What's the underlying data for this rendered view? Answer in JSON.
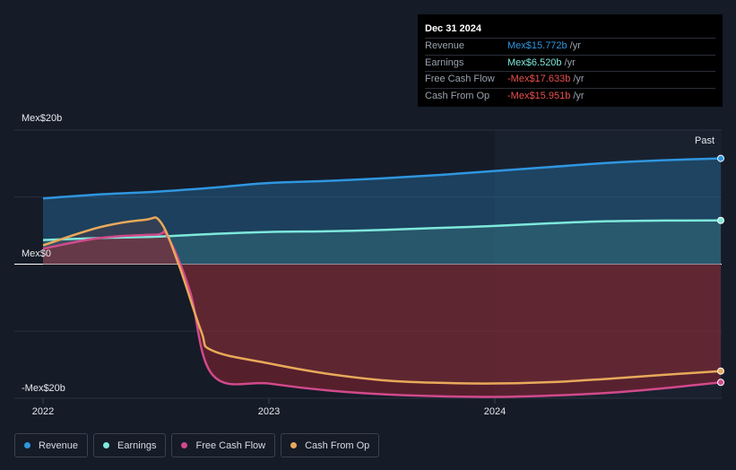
{
  "tooltip": {
    "date": "Dec 31 2024",
    "rows": [
      {
        "label": "Revenue",
        "value": "Mex$15.772b",
        "unit": "/yr",
        "color": "#2f96e0"
      },
      {
        "label": "Earnings",
        "value": "Mex$6.520b",
        "unit": "/yr",
        "color": "#7ee8dc"
      },
      {
        "label": "Free Cash Flow",
        "value": "-Mex$17.633b",
        "unit": "/yr",
        "color": "#e84f4f"
      },
      {
        "label": "Cash From Op",
        "value": "-Mex$15.951b",
        "unit": "/yr",
        "color": "#e84f4f"
      }
    ]
  },
  "legend": [
    {
      "label": "Revenue",
      "color": "#2f96e0"
    },
    {
      "label": "Earnings",
      "color": "#7ee8dc"
    },
    {
      "label": "Free Cash Flow",
      "color": "#d14a8b"
    },
    {
      "label": "Cash From Op",
      "color": "#e8a95a"
    }
  ],
  "chart_data": {
    "type": "area",
    "y_labels": {
      "top": "Mex$20b",
      "zero": "Mex$0",
      "bottom": "-Mex$20b"
    },
    "ylim": [
      -20,
      20
    ],
    "xlim": [
      2022.0,
      2025.0
    ],
    "x_ticks": [
      {
        "value": 2022.0,
        "label": "2022"
      },
      {
        "value": 2023.0,
        "label": "2023"
      },
      {
        "value": 2024.0,
        "label": "2024"
      }
    ],
    "past_label": "Past",
    "past_start": 2024.0,
    "series": [
      {
        "name": "Revenue",
        "color": "#2f96e0",
        "x": [
          2022.0,
          2022.25,
          2022.5,
          2022.75,
          2023.0,
          2023.25,
          2023.5,
          2023.75,
          2024.0,
          2024.25,
          2024.5,
          2024.75,
          2025.0
        ],
        "y": [
          9.8,
          10.4,
          10.8,
          11.4,
          12.1,
          12.4,
          12.8,
          13.3,
          13.9,
          14.5,
          15.1,
          15.5,
          15.772
        ]
      },
      {
        "name": "Earnings",
        "color": "#7ee8dc",
        "x": [
          2022.0,
          2022.25,
          2022.5,
          2022.75,
          2023.0,
          2023.25,
          2023.5,
          2023.75,
          2024.0,
          2024.25,
          2024.5,
          2024.75,
          2025.0
        ],
        "y": [
          3.6,
          3.9,
          4.1,
          4.5,
          4.8,
          4.9,
          5.1,
          5.4,
          5.7,
          6.1,
          6.4,
          6.5,
          6.52
        ]
      },
      {
        "name": "Free Cash Flow",
        "color": "#d14a8b",
        "x": [
          2022.0,
          2022.25,
          2022.5,
          2022.55,
          2022.65,
          2022.75,
          2023.0,
          2023.25,
          2023.5,
          2023.75,
          2024.0,
          2024.25,
          2024.5,
          2024.75,
          2025.0
        ],
        "y": [
          2.3,
          3.9,
          4.4,
          4.2,
          -4.0,
          -16.5,
          -17.8,
          -18.8,
          -19.4,
          -19.7,
          -19.8,
          -19.6,
          -19.2,
          -18.5,
          -17.633
        ]
      },
      {
        "name": "Cash From Op",
        "color": "#e8a95a",
        "x": [
          2022.0,
          2022.25,
          2022.45,
          2022.52,
          2022.6,
          2022.7,
          2022.75,
          2023.0,
          2023.25,
          2023.5,
          2023.75,
          2024.0,
          2024.25,
          2024.5,
          2024.75,
          2025.0
        ],
        "y": [
          2.8,
          5.5,
          6.6,
          6.3,
          0.0,
          -10.0,
          -12.9,
          -14.8,
          -16.3,
          -17.3,
          -17.7,
          -17.8,
          -17.6,
          -17.1,
          -16.5,
          -15.951
        ]
      }
    ]
  }
}
